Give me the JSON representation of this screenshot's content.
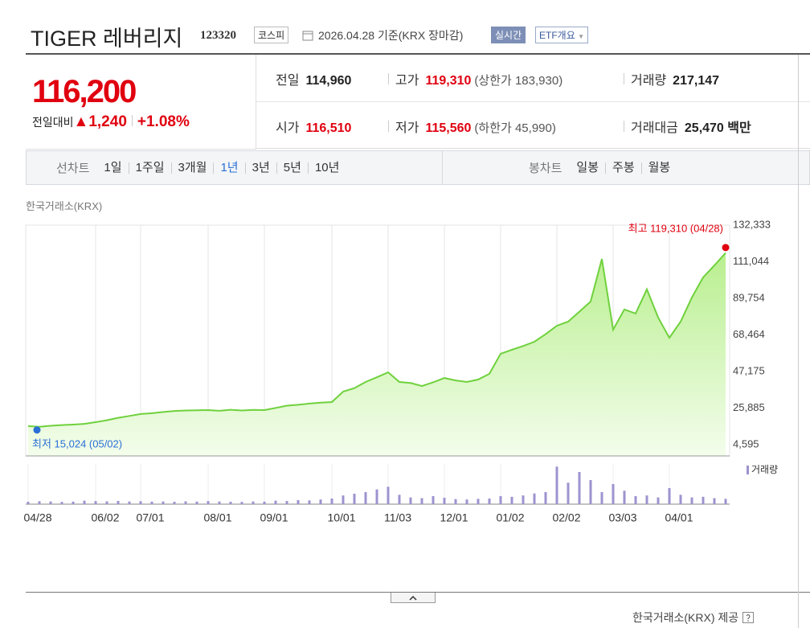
{
  "header": {
    "title": "TIGER 레버리지",
    "code": "123320",
    "market": "코스피",
    "date": "2026.04.28 기준(KRX 장마감)",
    "realtime_button": "실시간",
    "etf_button": "ETF개요"
  },
  "quote": {
    "price": "116,200",
    "change_label": "전일대비",
    "change": "▲1,240",
    "change_rate": "+1.08%",
    "stats": [
      [
        {
          "label": "전일",
          "value": "114,960",
          "color": "#222222"
        },
        {
          "label": "고가",
          "value": "119,310",
          "note": "(상한가 183,930)",
          "color": "#e0000f"
        },
        {
          "label": "거래량",
          "value": "217,147",
          "color": "#222222"
        }
      ],
      [
        {
          "label": "시가",
          "value": "116,510",
          "color": "#e0000f"
        },
        {
          "label": "저가",
          "value": "115,560",
          "note": "(하한가 45,990)",
          "color": "#e0000f"
        },
        {
          "label": "거래대금",
          "value": "25,470 백만",
          "color": "#222222"
        }
      ]
    ]
  },
  "tabs": {
    "line_label": "선차트",
    "line_periods": [
      "1일",
      "1주일",
      "3개월",
      "1년",
      "3년",
      "5년",
      "10년"
    ],
    "selected": "1년",
    "candle_label": "봉차트",
    "candle_periods": [
      "일봉",
      "주봉",
      "월봉"
    ]
  },
  "source_top": "한국거래소(KRX)",
  "chart": {
    "type": "line",
    "color": "#6fd13d",
    "categories": [
      "04/28",
      null,
      null,
      null,
      null,
      null,
      "06/02",
      null,
      null,
      null,
      "07/01",
      null,
      null,
      null,
      null,
      null,
      "08/01",
      null,
      null,
      null,
      null,
      "09/01",
      null,
      null,
      null,
      null,
      null,
      "10/01",
      null,
      null,
      null,
      null,
      "11/03",
      null,
      null,
      null,
      null,
      "12/01",
      null,
      null,
      null,
      null,
      "01/02",
      null,
      null,
      null,
      null,
      "02/02",
      null,
      null,
      null,
      null,
      "03/03",
      null,
      null,
      null,
      null,
      "04/01",
      null,
      null,
      null,
      null,
      null
    ],
    "values": [
      15400,
      15024,
      15600,
      16000,
      16300,
      16700,
      17700,
      18800,
      20200,
      21300,
      22400,
      22900,
      23600,
      24200,
      24500,
      24600,
      24700,
      24300,
      24900,
      24500,
      24800,
      24700,
      26000,
      27300,
      27800,
      28500,
      29000,
      29400,
      35500,
      37500,
      41100,
      43800,
      46700,
      41100,
      40500,
      38700,
      40900,
      43400,
      42000,
      41100,
      42500,
      45800,
      57500,
      59800,
      62000,
      64500,
      68900,
      73800,
      76200,
      82000,
      87900,
      112700,
      71500,
      83300,
      80900,
      95000,
      78600,
      66800,
      76200,
      90200,
      101900,
      108900,
      116200
    ],
    "ylim": [
      4595,
      132333
    ],
    "yticks": [
      {
        "value": 132333,
        "label": "132,333"
      },
      {
        "value": 111044,
        "label": "111,044"
      },
      {
        "value": 89754,
        "label": "89,754"
      },
      {
        "value": 68464,
        "label": "68,464"
      },
      {
        "value": 47175,
        "label": "47,175"
      },
      {
        "value": 25885,
        "label": "25,885"
      },
      {
        "value": 4595,
        "label": "4,595"
      }
    ],
    "high": {
      "value": 119310,
      "label": "최고 119,310 (04/28)",
      "color": "#e0000f"
    },
    "low": {
      "value": 15024,
      "label": "최저 15,024 (05/02)",
      "color": "#2a6fd6"
    },
    "volume": {
      "legend": "거래량",
      "color": "#9d93cf",
      "ylim": [
        0,
        3000000
      ],
      "values": [
        180000,
        220000,
        200000,
        170000,
        190000,
        260000,
        230000,
        210000,
        240000,
        200000,
        220000,
        190000,
        200000,
        180000,
        210000,
        190000,
        230000,
        200000,
        180000,
        170000,
        200000,
        190000,
        260000,
        240000,
        300000,
        280000,
        350000,
        420000,
        650000,
        780000,
        900000,
        1100000,
        1300000,
        700000,
        500000,
        450000,
        600000,
        480000,
        380000,
        350000,
        400000,
        420000,
        600000,
        550000,
        650000,
        800000,
        900000,
        2800000,
        1600000,
        2400000,
        1800000,
        900000,
        1500000,
        1000000,
        600000,
        650000,
        500000,
        1200000,
        700000,
        500000,
        550000,
        450000,
        400000
      ]
    }
  },
  "footer": "한국거래소(KRX) 제공"
}
